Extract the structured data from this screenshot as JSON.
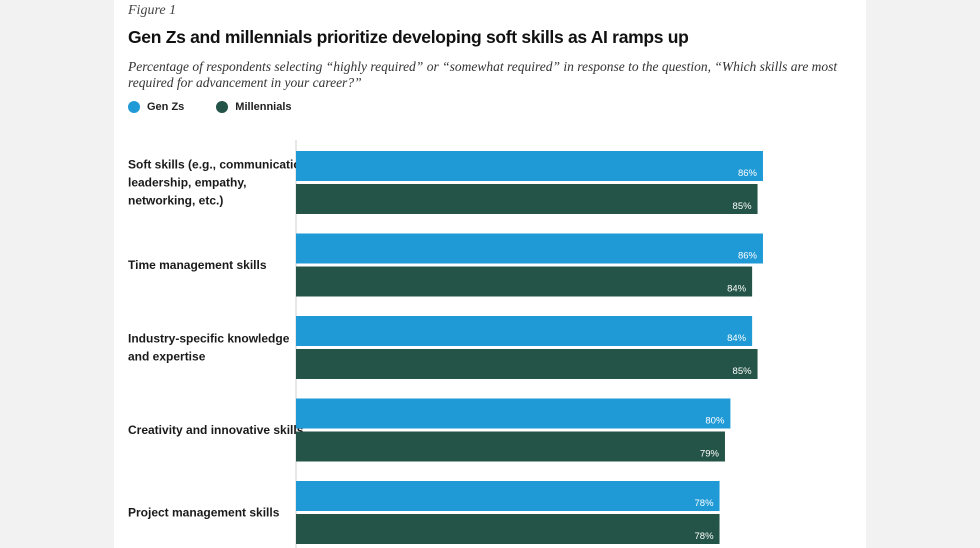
{
  "figure_label": "Figure 1",
  "title": "Gen Zs and millennials prioritize developing soft skills as AI ramps up",
  "subtitle": "Percentage of respondents selecting “highly required” or “somewhat required” in response to the question, “Which skills are most required for advancement in your career?”",
  "legend": [
    {
      "label": "Gen Zs",
      "color": "#1f9ad6"
    },
    {
      "label": "Millennials",
      "color": "#245447"
    }
  ],
  "chart_data": {
    "type": "bar",
    "orientation": "horizontal",
    "title": "Gen Zs and millennials prioritize developing soft skills as AI ramps up",
    "categories": [
      [
        "Soft skills (e.g., communication,",
        "leadership, empathy,",
        "networking, etc.)"
      ],
      [
        "Time management skills"
      ],
      [
        "Industry-specific knowledge",
        "and expertise"
      ],
      [
        "Creativity and innovative skills"
      ],
      [
        "Project management skills"
      ]
    ],
    "series": [
      {
        "name": "Gen Zs",
        "color": "#1f9ad6",
        "values": [
          86,
          86,
          84,
          80,
          78
        ]
      },
      {
        "name": "Millennials",
        "color": "#245447",
        "values": [
          85,
          84,
          85,
          79,
          78
        ]
      }
    ],
    "value_suffix": "%",
    "xlim": [
      0,
      100
    ],
    "xlabel": "",
    "ylabel": ""
  }
}
